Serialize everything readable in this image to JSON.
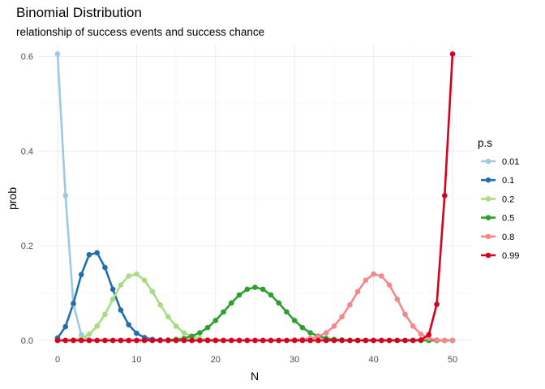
{
  "chart_data": {
    "type": "line",
    "title": "Binomial Distribution",
    "subtitle": "relationship of success events and success chance",
    "xlabel": "N",
    "ylabel": "prob",
    "xlim": [
      0,
      50
    ],
    "ylim": [
      0,
      0.605
    ],
    "x_ticks": [
      0,
      10,
      20,
      30,
      40,
      50
    ],
    "y_ticks": [
      0.0,
      0.2,
      0.4,
      0.6
    ],
    "y_tick_labels": [
      "0.0",
      "0.2",
      "0.4",
      "0.6"
    ],
    "grid": true,
    "legend": {
      "title": "p.s",
      "position": "right"
    },
    "series": [
      {
        "name": "0.01",
        "color": "#9ecae1",
        "p": 0.01,
        "values": [
          0.605,
          0.306,
          0.076,
          0.012,
          0.001,
          0.0,
          0.0,
          0.0,
          0.0,
          0.0,
          0.0,
          0.0,
          0.0,
          0.0,
          0.0,
          0.0,
          0.0,
          0.0,
          0.0,
          0.0,
          0.0,
          0.0,
          0.0,
          0.0,
          0.0,
          0.0,
          0.0,
          0.0,
          0.0,
          0.0,
          0.0,
          0.0,
          0.0,
          0.0,
          0.0,
          0.0,
          0.0,
          0.0,
          0.0,
          0.0,
          0.0,
          0.0,
          0.0,
          0.0,
          0.0,
          0.0,
          0.0,
          0.0,
          0.0,
          0.0,
          0.0
        ]
      },
      {
        "name": "0.1",
        "color": "#1f6fb0",
        "p": 0.1,
        "values": [
          0.005,
          0.029,
          0.078,
          0.139,
          0.181,
          0.185,
          0.154,
          0.108,
          0.064,
          0.033,
          0.015,
          0.006,
          0.002,
          0.001,
          0.0,
          0.0,
          0.0,
          0.0,
          0.0,
          0.0,
          0.0,
          0.0,
          0.0,
          0.0,
          0.0,
          0.0,
          0.0,
          0.0,
          0.0,
          0.0,
          0.0,
          0.0,
          0.0,
          0.0,
          0.0,
          0.0,
          0.0,
          0.0,
          0.0,
          0.0,
          0.0,
          0.0,
          0.0,
          0.0,
          0.0,
          0.0,
          0.0,
          0.0,
          0.0,
          0.0,
          0.0
        ]
      },
      {
        "name": "0.2",
        "color": "#a6dd83",
        "p": 0.2,
        "values": [
          0.0,
          0.0,
          0.001,
          0.004,
          0.013,
          0.03,
          0.055,
          0.087,
          0.117,
          0.136,
          0.14,
          0.127,
          0.103,
          0.075,
          0.05,
          0.03,
          0.016,
          0.008,
          0.004,
          0.002,
          0.001,
          0.0,
          0.0,
          0.0,
          0.0,
          0.0,
          0.0,
          0.0,
          0.0,
          0.0,
          0.0,
          0.0,
          0.0,
          0.0,
          0.0,
          0.0,
          0.0,
          0.0,
          0.0,
          0.0,
          0.0,
          0.0,
          0.0,
          0.0,
          0.0,
          0.0,
          0.0,
          0.0,
          0.0,
          0.0,
          0.0
        ]
      },
      {
        "name": "0.5",
        "color": "#2ca02c",
        "p": 0.5,
        "values": [
          0.0,
          0.0,
          0.0,
          0.0,
          0.0,
          0.0,
          0.0,
          0.0,
          0.0,
          0.0,
          0.0,
          0.0,
          0.0,
          0.0,
          0.001,
          0.002,
          0.004,
          0.009,
          0.016,
          0.027,
          0.042,
          0.06,
          0.079,
          0.096,
          0.108,
          0.112,
          0.108,
          0.096,
          0.079,
          0.06,
          0.042,
          0.027,
          0.016,
          0.009,
          0.004,
          0.002,
          0.001,
          0.0,
          0.0,
          0.0,
          0.0,
          0.0,
          0.0,
          0.0,
          0.0,
          0.0,
          0.0,
          0.0,
          0.0,
          0.0,
          0.0
        ]
      },
      {
        "name": "0.8",
        "color": "#f4898b",
        "p": 0.8,
        "values": [
          0.0,
          0.0,
          0.0,
          0.0,
          0.0,
          0.0,
          0.0,
          0.0,
          0.0,
          0.0,
          0.0,
          0.0,
          0.0,
          0.0,
          0.0,
          0.0,
          0.0,
          0.0,
          0.0,
          0.0,
          0.0,
          0.0,
          0.0,
          0.0,
          0.0,
          0.0,
          0.0,
          0.0,
          0.0,
          0.0,
          0.001,
          0.002,
          0.004,
          0.008,
          0.016,
          0.03,
          0.05,
          0.075,
          0.103,
          0.127,
          0.14,
          0.136,
          0.117,
          0.087,
          0.055,
          0.03,
          0.013,
          0.004,
          0.001,
          0.0,
          0.0
        ]
      },
      {
        "name": "0.99",
        "color": "#d7001f",
        "p": 0.99,
        "values": [
          0.0,
          0.0,
          0.0,
          0.0,
          0.0,
          0.0,
          0.0,
          0.0,
          0.0,
          0.0,
          0.0,
          0.0,
          0.0,
          0.0,
          0.0,
          0.0,
          0.0,
          0.0,
          0.0,
          0.0,
          0.0,
          0.0,
          0.0,
          0.0,
          0.0,
          0.0,
          0.0,
          0.0,
          0.0,
          0.0,
          0.0,
          0.0,
          0.0,
          0.0,
          0.0,
          0.0,
          0.0,
          0.0,
          0.0,
          0.0,
          0.0,
          0.0,
          0.0,
          0.0,
          0.0,
          0.0,
          0.001,
          0.012,
          0.076,
          0.306,
          0.605
        ]
      }
    ]
  }
}
